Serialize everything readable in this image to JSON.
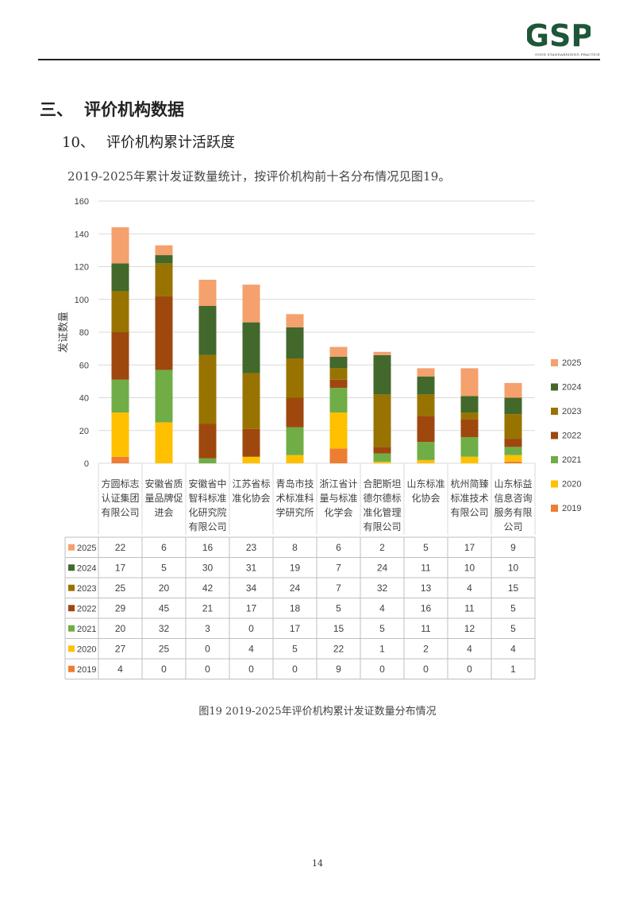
{
  "header": {
    "logo_text": "GSP",
    "logo_tagline": "GOOD STANDARDIZING PRACTICE",
    "brand_color": "#1e5638"
  },
  "section": {
    "number": "三、",
    "title": "评价机构数据"
  },
  "subsection": {
    "number": "10、",
    "title": "评价机构累计活跃度"
  },
  "intro": "2019-2025年累计发证数量统计，按评价机构前十名分布情况见图19。",
  "chart_data": {
    "type": "bar",
    "stacked": true,
    "ylabel": "发证数量",
    "ylim": [
      0,
      160
    ],
    "yticks": [
      "0",
      "20",
      "40",
      "60",
      "80",
      "100",
      "120",
      "140",
      "160"
    ],
    "grid": true,
    "legend_position": "right",
    "categories": [
      [
        "方圆标志",
        "认证集团",
        "有限公司"
      ],
      [
        "安徽省质",
        "量品牌促",
        "进会"
      ],
      [
        "安徽省中",
        "智科标准",
        "化研究院",
        "有限公司"
      ],
      [
        "江苏省标",
        "准化协会"
      ],
      [
        "青岛市技",
        "术标准科",
        "学研究所"
      ],
      [
        "浙江省计",
        "量与标准",
        "化学会"
      ],
      [
        "合肥斯坦",
        "德尔德标",
        "准化管理",
        "有限公司"
      ],
      [
        "山东标准",
        "化协会"
      ],
      [
        "杭州简臻",
        "标准技术",
        "有限公司"
      ],
      [
        "山东标益",
        "信息咨询",
        "服务有限",
        "公司"
      ]
    ],
    "series": [
      {
        "name": "2019",
        "color": "#ed7d31",
        "values": [
          4,
          0,
          0,
          0,
          0,
          9,
          0,
          0,
          0,
          1
        ]
      },
      {
        "name": "2020",
        "color": "#ffc000",
        "values": [
          27,
          25,
          0,
          4,
          5,
          22,
          1,
          2,
          4,
          4
        ]
      },
      {
        "name": "2021",
        "color": "#70ad47",
        "values": [
          20,
          32,
          3,
          0,
          17,
          15,
          5,
          11,
          12,
          5
        ]
      },
      {
        "name": "2022",
        "color": "#9e480e",
        "values": [
          29,
          45,
          21,
          17,
          18,
          5,
          4,
          16,
          11,
          5
        ]
      },
      {
        "name": "2023",
        "color": "#997300",
        "values": [
          25,
          20,
          42,
          34,
          24,
          7,
          32,
          13,
          4,
          15
        ]
      },
      {
        "name": "2024",
        "color": "#43682b",
        "values": [
          17,
          5,
          30,
          31,
          19,
          7,
          24,
          11,
          10,
          10
        ]
      },
      {
        "name": "2025",
        "color": "#f4a16d",
        "values": [
          22,
          6,
          16,
          23,
          8,
          6,
          2,
          5,
          17,
          9
        ]
      }
    ],
    "table_row_order": [
      "2025",
      "2024",
      "2023",
      "2022",
      "2021",
      "2020",
      "2019"
    ]
  },
  "caption": "图19 2019-2025年评价机构累计发证数量分布情况",
  "page_number": "14"
}
